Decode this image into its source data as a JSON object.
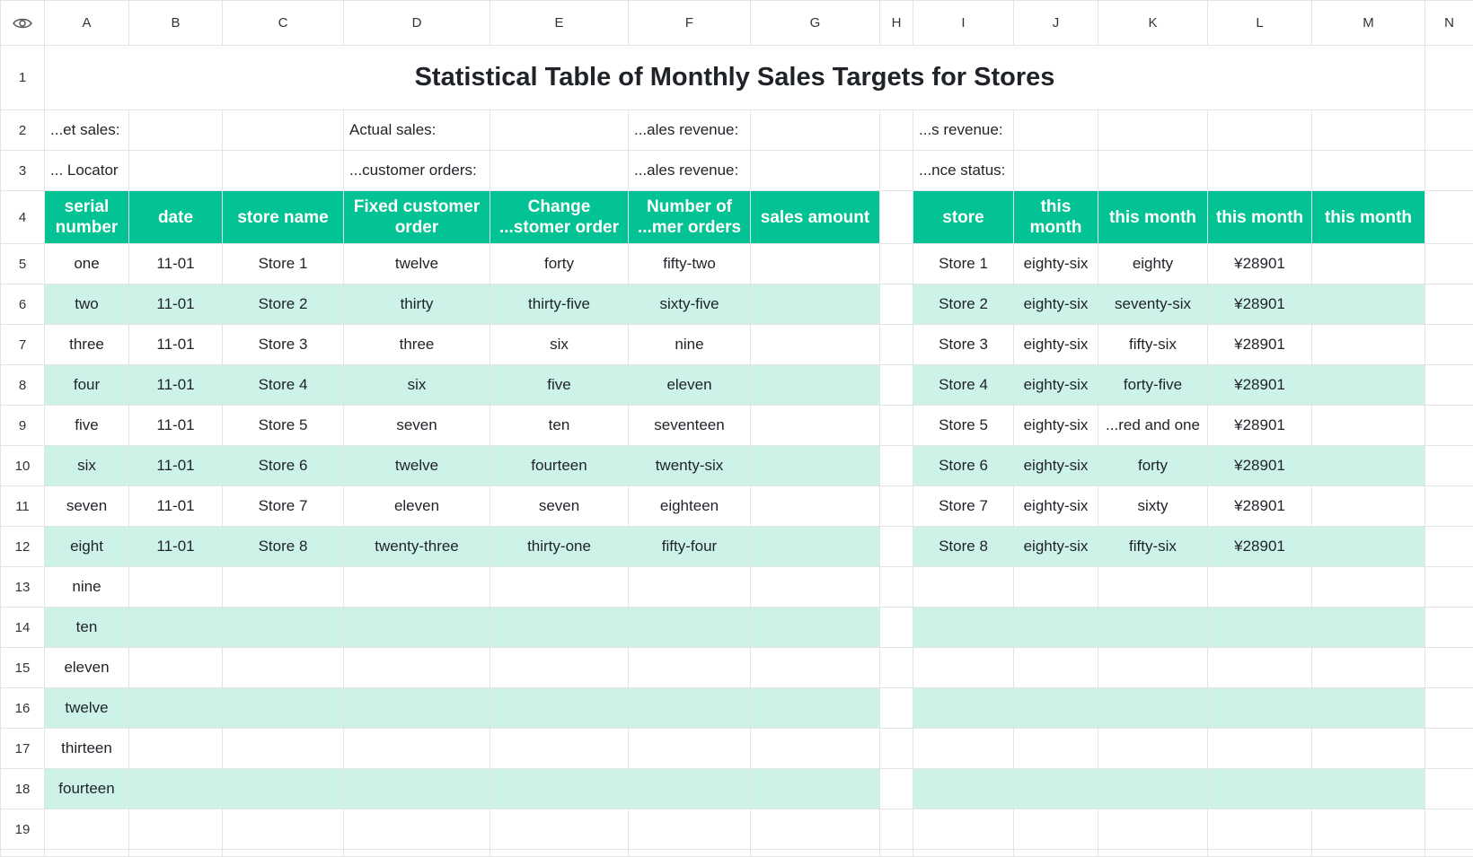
{
  "columns": [
    "A",
    "B",
    "C",
    "D",
    "E",
    "F",
    "G",
    "H",
    "I",
    "J",
    "K",
    "L",
    "M",
    "N"
  ],
  "title": "Statistical Table of Monthly Sales Targets for Stores",
  "info_rows": [
    {
      "row": "2",
      "a": "...et sales:",
      "d": "Actual sales:",
      "f": "...ales revenue:",
      "i": "...s revenue:"
    },
    {
      "row": "3",
      "a": "... Locator",
      "d": "...customer orders:",
      "f": "...ales revenue:",
      "i": "...nce status:"
    }
  ],
  "left_headers": [
    [
      "serial",
      "number"
    ],
    [
      "date"
    ],
    [
      "store name"
    ],
    [
      "Fixed customer",
      "order"
    ],
    [
      "Change",
      "...stomer order"
    ],
    [
      "Number of",
      "...mer orders"
    ],
    [
      "sales amount"
    ]
  ],
  "right_headers": [
    [
      "store"
    ],
    [
      "this",
      "month"
    ],
    [
      "this month"
    ],
    [
      "this month"
    ],
    [
      "this month"
    ]
  ],
  "rows": [
    {
      "row": "5",
      "serial": "one",
      "date": "11-01",
      "store": "Store 1",
      "fixed": "twelve",
      "change": "forty",
      "number": "fifty-two",
      "sales": "",
      "r_store": "Store 1",
      "r_j": "eighty-six",
      "r_k": "eighty",
      "r_l": "¥28901",
      "r_m": ""
    },
    {
      "row": "6",
      "serial": "two",
      "date": "11-01",
      "store": "Store 2",
      "fixed": "thirty",
      "change": "thirty-five",
      "number": "sixty-five",
      "sales": "",
      "r_store": "Store 2",
      "r_j": "eighty-six",
      "r_k": "seventy-six",
      "r_l": "¥28901",
      "r_m": ""
    },
    {
      "row": "7",
      "serial": "three",
      "date": "11-01",
      "store": "Store 3",
      "fixed": "three",
      "change": "six",
      "number": "nine",
      "sales": "",
      "r_store": "Store 3",
      "r_j": "eighty-six",
      "r_k": "fifty-six",
      "r_l": "¥28901",
      "r_m": ""
    },
    {
      "row": "8",
      "serial": "four",
      "date": "11-01",
      "store": "Store 4",
      "fixed": "six",
      "change": "five",
      "number": "eleven",
      "sales": "",
      "r_store": "Store 4",
      "r_j": "eighty-six",
      "r_k": "forty-five",
      "r_l": "¥28901",
      "r_m": ""
    },
    {
      "row": "9",
      "serial": "five",
      "date": "11-01",
      "store": "Store 5",
      "fixed": "seven",
      "change": "ten",
      "number": "seventeen",
      "sales": "",
      "r_store": "Store 5",
      "r_j": "eighty-six",
      "r_k": "...red and one",
      "r_l": "¥28901",
      "r_m": ""
    },
    {
      "row": "10",
      "serial": "six",
      "date": "11-01",
      "store": "Store 6",
      "fixed": "twelve",
      "change": "fourteen",
      "number": "twenty-six",
      "sales": "",
      "r_store": "Store 6",
      "r_j": "eighty-six",
      "r_k": "forty",
      "r_l": "¥28901",
      "r_m": ""
    },
    {
      "row": "11",
      "serial": "seven",
      "date": "11-01",
      "store": "Store 7",
      "fixed": "eleven",
      "change": "seven",
      "number": "eighteen",
      "sales": "",
      "r_store": "Store 7",
      "r_j": "eighty-six",
      "r_k": "sixty",
      "r_l": "¥28901",
      "r_m": ""
    },
    {
      "row": "12",
      "serial": "eight",
      "date": "11-01",
      "store": "Store 8",
      "fixed": "twenty-three",
      "change": "thirty-one",
      "number": "fifty-four",
      "sales": "",
      "r_store": "Store 8",
      "r_j": "eighty-six",
      "r_k": "fifty-six",
      "r_l": "¥28901",
      "r_m": ""
    },
    {
      "row": "13",
      "serial": "nine",
      "date": "",
      "store": "",
      "fixed": "",
      "change": "",
      "number": "",
      "sales": "",
      "r_store": "",
      "r_j": "",
      "r_k": "",
      "r_l": "",
      "r_m": ""
    },
    {
      "row": "14",
      "serial": "ten",
      "date": "",
      "store": "",
      "fixed": "",
      "change": "",
      "number": "",
      "sales": "",
      "r_store": "",
      "r_j": "",
      "r_k": "",
      "r_l": "",
      "r_m": ""
    },
    {
      "row": "15",
      "serial": "eleven",
      "date": "",
      "store": "",
      "fixed": "",
      "change": "",
      "number": "",
      "sales": "",
      "r_store": "",
      "r_j": "",
      "r_k": "",
      "r_l": "",
      "r_m": ""
    },
    {
      "row": "16",
      "serial": "twelve",
      "date": "",
      "store": "",
      "fixed": "",
      "change": "",
      "number": "",
      "sales": "",
      "r_store": "",
      "r_j": "",
      "r_k": "",
      "r_l": "",
      "r_m": ""
    },
    {
      "row": "17",
      "serial": "thirteen",
      "date": "",
      "store": "",
      "fixed": "",
      "change": "",
      "number": "",
      "sales": "",
      "r_store": "",
      "r_j": "",
      "r_k": "",
      "r_l": "",
      "r_m": ""
    },
    {
      "row": "18",
      "serial": "fourteen",
      "date": "",
      "store": "",
      "fixed": "",
      "change": "",
      "number": "",
      "sales": "",
      "r_store": "",
      "r_j": "",
      "r_k": "",
      "r_l": "",
      "r_m": ""
    }
  ],
  "empty_rows": [
    "1",
    "19"
  ],
  "colors": {
    "header_green": "#03c293",
    "band_green": "#cdf2e8",
    "grid": "#e2e4e6"
  },
  "icons": {
    "corner": "eye-icon"
  }
}
